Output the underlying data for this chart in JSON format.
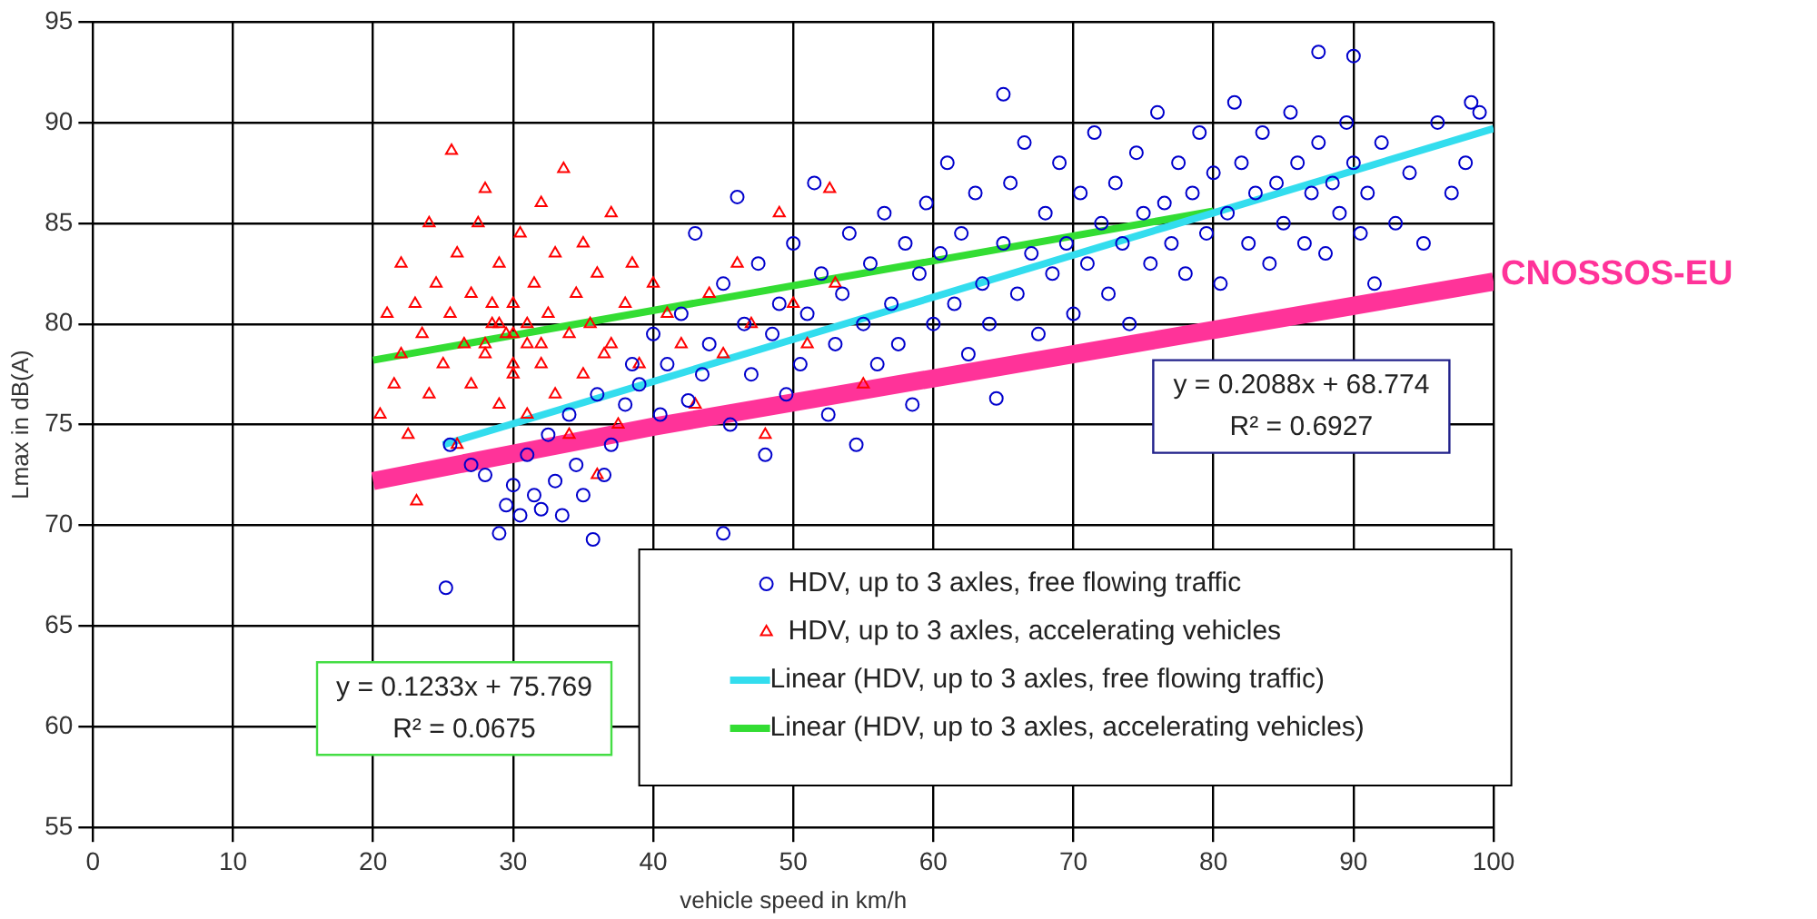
{
  "chart_data": {
    "type": "scatter",
    "xlabel": "vehicle speed in km/h",
    "ylabel": "Lmax in dB(A)",
    "xlim": [
      0,
      100
    ],
    "xticks": [
      0,
      10,
      20,
      30,
      40,
      50,
      60,
      70,
      80,
      90,
      100
    ],
    "ylim": [
      55,
      95
    ],
    "yticks": [
      55,
      60,
      65,
      70,
      75,
      80,
      85,
      90,
      95
    ],
    "grid": true,
    "legend": "bottom right",
    "annotations": [
      "y = 0.2088x + 68.774",
      "R² = 0.6927",
      "y = 0.1233x + 75.769",
      "R² = 0.0675",
      {
        "text": "CNOSSOS-EU",
        "x": 100,
        "y": 82.1
      }
    ],
    "series": [
      {
        "name": "HDV, up to 3 axles, free flowing traffic",
        "marker": "circle",
        "color": "#0000cc",
        "x": [
          25.2,
          25.5,
          27,
          28,
          29,
          29.5,
          30,
          30.5,
          31,
          31.5,
          32,
          32.5,
          33,
          33.5,
          34,
          34.5,
          35,
          35.7,
          36,
          36.5,
          37,
          38,
          38.5,
          39,
          40,
          40.5,
          41,
          42,
          42.5,
          43,
          43.5,
          44,
          45,
          45,
          45.5,
          46,
          46.5,
          47,
          47.5,
          48,
          48.5,
          49,
          49.5,
          50,
          50.5,
          51,
          51.5,
          52,
          52.5,
          53,
          53.5,
          54,
          54.5,
          55,
          55.5,
          56,
          56.5,
          57,
          57.5,
          58,
          58.5,
          59,
          59.5,
          60,
          60.5,
          61,
          61.5,
          62,
          62.5,
          63,
          63.5,
          64,
          64.5,
          65,
          65,
          65.5,
          66,
          66.5,
          67,
          67.5,
          68,
          68.5,
          69,
          69.5,
          70,
          70.5,
          71,
          71.5,
          72,
          72.5,
          73,
          73.5,
          74,
          74.5,
          75,
          75.5,
          76,
          76.5,
          77,
          77.5,
          78,
          78.5,
          79,
          79.5,
          80,
          80.5,
          81,
          81.5,
          82,
          82.5,
          83,
          83.5,
          84,
          84.5,
          85,
          85.5,
          86,
          86.5,
          87,
          87.5,
          87.5,
          88,
          88.5,
          89,
          89.5,
          90,
          90,
          90.5,
          91,
          91.5,
          92,
          93,
          94,
          95,
          96,
          97,
          98,
          98.4,
          99
        ],
        "values": [
          66.9,
          74,
          73,
          72.5,
          69.6,
          71,
          72,
          70.5,
          73.5,
          71.5,
          70.8,
          74.5,
          72.2,
          70.5,
          75.5,
          73,
          71.5,
          69.3,
          76.5,
          72.5,
          74,
          76,
          78,
          77,
          79.5,
          75.5,
          78,
          80.5,
          76.2,
          84.5,
          77.5,
          79,
          69.6,
          82,
          75,
          86.3,
          80,
          77.5,
          83,
          73.5,
          79.5,
          81,
          76.5,
          84,
          78,
          80.5,
          87,
          82.5,
          75.5,
          79,
          81.5,
          84.5,
          74,
          80,
          83,
          78,
          85.5,
          81,
          79,
          84,
          76,
          82.5,
          86,
          80,
          83.5,
          88,
          81,
          84.5,
          78.5,
          86.5,
          82,
          80,
          76.3,
          91.4,
          84,
          87,
          81.5,
          89,
          83.5,
          79.5,
          85.5,
          82.5,
          88,
          84,
          80.5,
          86.5,
          83,
          89.5,
          85,
          81.5,
          87,
          84,
          80,
          88.5,
          85.5,
          83,
          90.5,
          86,
          84,
          88,
          82.5,
          86.5,
          89.5,
          84.5,
          87.5,
          82,
          85.5,
          91,
          88,
          84,
          86.5,
          89.5,
          83,
          87,
          85,
          90.5,
          88,
          84,
          86.5,
          93.5,
          89,
          83.5,
          87,
          85.5,
          90,
          93.3,
          88,
          84.5,
          86.5,
          82,
          89,
          85,
          87.5,
          84,
          90,
          86.5,
          88,
          91,
          90.5
        ]
      },
      {
        "name": "HDV, up to 3 axles, accelerating vehicles",
        "marker": "triangle",
        "color": "#ff0000",
        "x": [
          20.5,
          21,
          21.5,
          22,
          22,
          22.5,
          23,
          23.1,
          23.5,
          24,
          24,
          24.5,
          25,
          25.5,
          25.6,
          26,
          26,
          26.5,
          27,
          27,
          27.5,
          28,
          28,
          28.5,
          29,
          29,
          29.5,
          30,
          30,
          30.5,
          31,
          31,
          31.5,
          32,
          32,
          32.5,
          33,
          33,
          33.6,
          34,
          34,
          34.5,
          35,
          35,
          35.5,
          36,
          36,
          36.5,
          37,
          37,
          37.5,
          38,
          38.5,
          39,
          40,
          41,
          42,
          43,
          44,
          45,
          46,
          47,
          48,
          49,
          50,
          51,
          52.6,
          53,
          55,
          28,
          29,
          30,
          31,
          28.5,
          30,
          32
        ],
        "values": [
          75.5,
          80.5,
          77,
          83,
          78.5,
          74.5,
          81,
          71.2,
          79.5,
          85,
          76.5,
          82,
          78,
          80.5,
          88.6,
          74,
          83.5,
          79,
          77,
          81.5,
          85,
          78.5,
          86.7,
          80,
          76,
          83,
          79.5,
          81,
          77.5,
          84.5,
          79,
          75.5,
          82,
          78,
          86,
          80.5,
          76.5,
          83.5,
          87.7,
          79.5,
          74.5,
          81.5,
          77.5,
          84,
          80,
          72.5,
          82.5,
          78.5,
          85.5,
          79,
          75,
          81,
          83,
          78,
          82,
          80.5,
          79,
          76,
          81.5,
          78.5,
          83,
          80,
          74.5,
          85.5,
          81,
          79,
          86.7,
          82,
          77,
          79,
          80,
          79.5,
          80,
          81,
          78,
          79
        ]
      },
      {
        "name": "Linear (HDV, up to 3 axles, free flowing traffic)",
        "type": "line",
        "color": "#33ddee",
        "x": [
          25,
          100
        ],
        "values": [
          74.0,
          89.7
        ]
      },
      {
        "name": "Linear (HDV, up to 3 axles, accelerating vehicles)",
        "type": "line",
        "color": "#33dd33",
        "x": [
          20,
          80
        ],
        "values": [
          78.2,
          85.6
        ]
      },
      {
        "type": "line",
        "color": "#ff3399",
        "x": [
          20,
          40,
          100
        ],
        "values": [
          72.2,
          74.9,
          82.1
        ]
      }
    ]
  }
}
